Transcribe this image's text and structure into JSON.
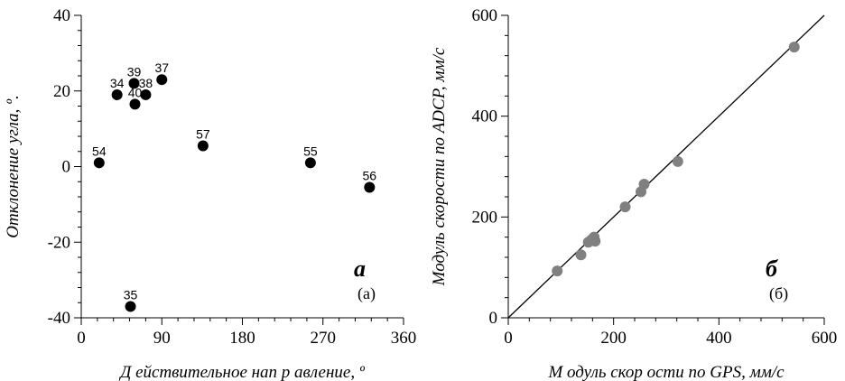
{
  "chart_data": [
    {
      "type": "scatter",
      "title": "",
      "xlabel": "Д ействительное нап р авление, º",
      "ylabel": "Отклонение угла, º.",
      "xlim": [
        0,
        360
      ],
      "ylim": [
        -40,
        40
      ],
      "xticks": [
        "0",
        "90",
        "180",
        "270",
        "360"
      ],
      "yticks": [
        "40",
        "20",
        "0",
        "-20",
        "-40"
      ],
      "grid": false,
      "marker_color": "#000000",
      "panel_letter": "а",
      "panel_tag": "(а)",
      "points": [
        {
          "label": "34",
          "x": 40,
          "y": 19
        },
        {
          "label": "35",
          "x": 55,
          "y": -37
        },
        {
          "label": "37",
          "x": 90,
          "y": 23
        },
        {
          "label": "38",
          "x": 72,
          "y": 19
        },
        {
          "label": "39",
          "x": 59,
          "y": 22
        },
        {
          "label": "40",
          "x": 60,
          "y": 16.5
        },
        {
          "label": "54",
          "x": 20,
          "y": 1
        },
        {
          "label": "55",
          "x": 256,
          "y": 1
        },
        {
          "label": "56",
          "x": 322,
          "y": -5.5
        },
        {
          "label": "57",
          "x": 136,
          "y": 5.5
        }
      ]
    },
    {
      "type": "scatter",
      "title": "",
      "xlabel": "М одуль скор ости по GPS, мм/с",
      "ylabel": "Модуль скорости по ADCP, мм/с",
      "xlim": [
        0,
        600
      ],
      "ylim": [
        0,
        600
      ],
      "xticks": [
        "0",
        "200",
        "400",
        "600"
      ],
      "yticks": [
        "600",
        "400",
        "200",
        "0"
      ],
      "grid": false,
      "marker_color": "#808080",
      "reference_line": {
        "from": [
          0,
          0
        ],
        "to": [
          600,
          600
        ],
        "color": "#000000"
      },
      "panel_letter": "б",
      "panel_tag": "(б)",
      "points": [
        {
          "x": 93,
          "y": 93
        },
        {
          "x": 138,
          "y": 125
        },
        {
          "x": 152,
          "y": 150
        },
        {
          "x": 158,
          "y": 155
        },
        {
          "x": 163,
          "y": 160
        },
        {
          "x": 165,
          "y": 152
        },
        {
          "x": 222,
          "y": 220
        },
        {
          "x": 252,
          "y": 250
        },
        {
          "x": 258,
          "y": 265
        },
        {
          "x": 322,
          "y": 310
        },
        {
          "x": 543,
          "y": 537
        }
      ]
    }
  ]
}
